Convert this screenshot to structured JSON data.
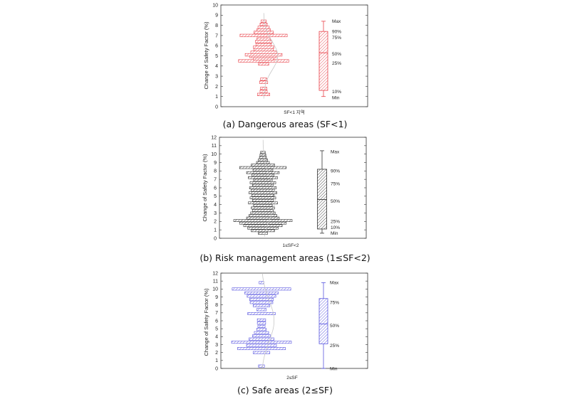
{
  "figure": {
    "y_axis_label": "Change of Safety Factor (%)"
  },
  "chart_data": [
    {
      "type": "box",
      "panel": "a",
      "caption": "(a) Dangerous areas (SF<1)",
      "x_tick_label": "SF<1 지역",
      "ylabel": "Change of Safety Factor (%)",
      "ylim": [
        0,
        10
      ],
      "yticks": [
        0,
        1,
        2,
        3,
        4,
        5,
        6,
        7,
        8,
        9,
        10
      ],
      "color": "#e8434b",
      "histogram": {
        "bin_width": 0.26,
        "bins": [
          {
            "y": 1.2,
            "w": 0.24
          },
          {
            "y": 1.5,
            "w": 0.14
          },
          {
            "y": 1.8,
            "w": 0.12
          },
          {
            "y": 2.4,
            "w": 0.16
          },
          {
            "y": 2.7,
            "w": 0.12
          },
          {
            "y": 4.2,
            "w": 0.2
          },
          {
            "y": 4.5,
            "w": 0.98
          },
          {
            "y": 4.7,
            "w": 0.4
          },
          {
            "y": 4.95,
            "w": 0.55
          },
          {
            "y": 5.1,
            "w": 0.72
          },
          {
            "y": 5.35,
            "w": 0.5
          },
          {
            "y": 5.6,
            "w": 0.38
          },
          {
            "y": 5.85,
            "w": 0.4
          },
          {
            "y": 6.1,
            "w": 0.3
          },
          {
            "y": 6.4,
            "w": 0.32
          },
          {
            "y": 6.65,
            "w": 0.26
          },
          {
            "y": 7.0,
            "w": 0.92
          },
          {
            "y": 7.3,
            "w": 0.38
          },
          {
            "y": 7.55,
            "w": 0.26
          },
          {
            "y": 7.8,
            "w": 0.22
          },
          {
            "y": 8.1,
            "w": 0.14
          },
          {
            "y": 8.4,
            "w": 0.1
          }
        ],
        "normal_curve": {
          "mean": 5.0,
          "sd": 1.4,
          "peak": 0.55
        }
      },
      "box": {
        "min": 1.0,
        "p10": 1.6,
        "p25": 4.3,
        "p50": 5.3,
        "p75": 6.9,
        "p90": 7.4,
        "max": 8.4
      },
      "box_labels": [
        {
          "text": "Max",
          "y": 8.4
        },
        {
          "text": "90%",
          "y": 7.4
        },
        {
          "text": "75%",
          "y": 6.8
        },
        {
          "text": "50%",
          "y": 5.2
        },
        {
          "text": "25%",
          "y": 4.3
        },
        {
          "text": "10%",
          "y": 1.5
        },
        {
          "text": "Min",
          "y": 0.9
        }
      ]
    },
    {
      "type": "box",
      "panel": "b",
      "caption": "(b) Risk management areas (1≤SF<2)",
      "x_tick_label": "1≤SF<2",
      "ylabel": "Change of Safety Factor (%)",
      "ylim": [
        0,
        12
      ],
      "yticks": [
        0,
        1,
        2,
        3,
        4,
        5,
        6,
        7,
        8,
        9,
        10,
        11,
        12
      ],
      "color": "#333333",
      "histogram": {
        "bin_width": 0.26,
        "bins": [
          {
            "y": 0.6,
            "w": 0.16
          },
          {
            "y": 0.9,
            "w": 0.4
          },
          {
            "y": 1.2,
            "w": 0.52
          },
          {
            "y": 1.5,
            "w": 0.66
          },
          {
            "y": 1.8,
            "w": 0.8
          },
          {
            "y": 2.1,
            "w": 1.0
          },
          {
            "y": 2.4,
            "w": 0.56
          },
          {
            "y": 2.7,
            "w": 0.48
          },
          {
            "y": 3.0,
            "w": 0.42
          },
          {
            "y": 3.3,
            "w": 0.36
          },
          {
            "y": 3.6,
            "w": 0.4
          },
          {
            "y": 3.9,
            "w": 0.32
          },
          {
            "y": 4.2,
            "w": 0.5
          },
          {
            "y": 4.5,
            "w": 0.36
          },
          {
            "y": 4.8,
            "w": 0.44
          },
          {
            "y": 5.1,
            "w": 0.38
          },
          {
            "y": 5.4,
            "w": 0.48
          },
          {
            "y": 5.7,
            "w": 0.4
          },
          {
            "y": 6.0,
            "w": 0.46
          },
          {
            "y": 6.3,
            "w": 0.36
          },
          {
            "y": 6.6,
            "w": 0.44
          },
          {
            "y": 6.9,
            "w": 0.32
          },
          {
            "y": 7.2,
            "w": 0.5
          },
          {
            "y": 7.5,
            "w": 0.38
          },
          {
            "y": 7.8,
            "w": 0.56
          },
          {
            "y": 8.1,
            "w": 0.34
          },
          {
            "y": 8.4,
            "w": 0.8
          },
          {
            "y": 8.7,
            "w": 0.4
          },
          {
            "y": 9.0,
            "w": 0.22
          },
          {
            "y": 9.3,
            "w": 0.16
          },
          {
            "y": 9.6,
            "w": 0.12
          },
          {
            "y": 9.9,
            "w": 0.1
          },
          {
            "y": 10.2,
            "w": 0.08
          }
        ],
        "normal_curve": {
          "mean": 4.8,
          "sd": 2.3,
          "peak": 0.42
        }
      },
      "box": {
        "min": 0.6,
        "p10": 1.1,
        "p25": 1.4,
        "p50": 4.6,
        "p75": 7.5,
        "p90": 8.2,
        "max": 10.4
      },
      "box_labels": [
        {
          "text": "Max",
          "y": 10.3
        },
        {
          "text": "90%",
          "y": 8.0
        },
        {
          "text": "75%",
          "y": 6.5
        },
        {
          "text": "50%",
          "y": 4.4
        },
        {
          "text": "25%",
          "y": 2.0
        },
        {
          "text": "10%",
          "y": 1.3
        },
        {
          "text": "Min",
          "y": 0.6
        }
      ]
    },
    {
      "type": "box",
      "panel": "c",
      "caption": "(c) Safe areas (2≤SF)",
      "x_tick_label": "2≤SF",
      "ylabel": "Change of Safety Factor (%)",
      "ylim": [
        0,
        12
      ],
      "yticks": [
        0,
        1,
        2,
        3,
        4,
        5,
        6,
        7,
        8,
        9,
        10,
        11,
        12
      ],
      "color": "#5b58e0",
      "histogram": {
        "bin_width": 0.3,
        "bins": [
          {
            "y": 0.3,
            "w": 0.1
          },
          {
            "y": 2.0,
            "w": 0.28
          },
          {
            "y": 2.5,
            "w": 0.8
          },
          {
            "y": 2.9,
            "w": 0.5
          },
          {
            "y": 3.3,
            "w": 1.0
          },
          {
            "y": 3.7,
            "w": 0.42
          },
          {
            "y": 4.1,
            "w": 0.3
          },
          {
            "y": 4.5,
            "w": 0.24
          },
          {
            "y": 4.9,
            "w": 0.16
          },
          {
            "y": 5.3,
            "w": 0.12
          },
          {
            "y": 5.7,
            "w": 0.14
          },
          {
            "y": 6.1,
            "w": 0.14
          },
          {
            "y": 6.9,
            "w": 0.46
          },
          {
            "y": 7.4,
            "w": 0.16
          },
          {
            "y": 7.9,
            "w": 0.28
          },
          {
            "y": 8.3,
            "w": 0.38
          },
          {
            "y": 8.7,
            "w": 0.4
          },
          {
            "y": 9.1,
            "w": 0.48
          },
          {
            "y": 9.5,
            "w": 0.56
          },
          {
            "y": 10.0,
            "w": 0.98
          },
          {
            "y": 10.8,
            "w": 0.08
          }
        ],
        "normal_curve": {
          "mean": 6.0,
          "sd": 2.6,
          "peak": 0.42
        }
      },
      "box": {
        "min": 0.0,
        "p25": 3.1,
        "p50": 5.6,
        "p75": 8.8,
        "max": 10.8
      },
      "box_labels": [
        {
          "text": "Max",
          "y": 10.8
        },
        {
          "text": "75%",
          "y": 8.3
        },
        {
          "text": "50%",
          "y": 5.4
        },
        {
          "text": "25%",
          "y": 2.9
        },
        {
          "text": "Min",
          "y": 0.0
        }
      ]
    }
  ]
}
